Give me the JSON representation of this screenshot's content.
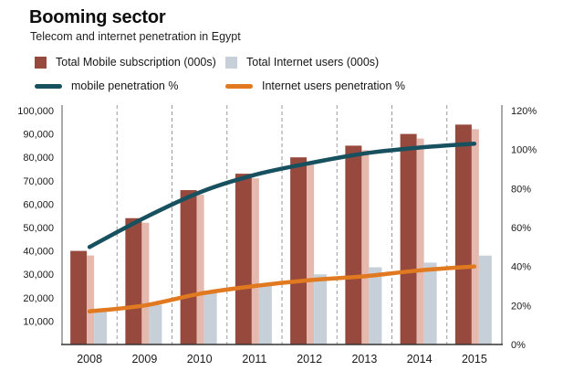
{
  "header": {
    "title": "Booming sector",
    "subtitle": "Telecom and internet penetration in Egypt"
  },
  "chart_data": {
    "type": "combo-bar-line",
    "title": "Booming sector",
    "subtitle": "Telecom and internet penetration in Egypt",
    "categories": [
      "2008",
      "2009",
      "2010",
      "2011",
      "2012",
      "2013",
      "2014",
      "2015"
    ],
    "left_axis": {
      "max": 100000,
      "tick_values": [
        10000,
        20000,
        30000,
        40000,
        50000,
        60000,
        70000,
        80000,
        90000,
        100000
      ],
      "tick_labels": [
        "10,000",
        "20,000",
        "30,000",
        "40,000",
        "50,000",
        "60,000",
        "70,000",
        "80,000",
        "90,000",
        "100,000"
      ]
    },
    "right_axis": {
      "max": 120,
      "tick_values": [
        0,
        20,
        40,
        60,
        80,
        100,
        120
      ],
      "tick_labels": [
        "0%",
        "20%",
        "40%",
        "60%",
        "80%",
        "100%",
        "120%"
      ]
    },
    "grid": "vertical-dashed",
    "legend_position": "top",
    "series": [
      {
        "name": "Total Mobile subscription (000s)",
        "type": "bar",
        "axis": "left",
        "color": "#96493c",
        "shadow_color": "#e5b9ae",
        "values": [
          40000,
          54000,
          66000,
          73000,
          80000,
          85000,
          90000,
          94000
        ]
      },
      {
        "name": "Total Internet users (000s)",
        "type": "bar",
        "axis": "left",
        "color": "#c7d0d9",
        "values": [
          15000,
          17000,
          23000,
          26000,
          30000,
          33000,
          35000,
          38000
        ]
      },
      {
        "name": "mobile penetration %",
        "type": "line",
        "axis": "right",
        "color": "#17505e",
        "values": [
          50,
          65,
          78,
          87,
          93,
          98,
          101,
          103
        ]
      },
      {
        "name": "Internet users penetration %",
        "type": "line",
        "axis": "right",
        "color": "#e0791f",
        "values": [
          17,
          20,
          26,
          30,
          33,
          35,
          38,
          40
        ]
      }
    ]
  }
}
